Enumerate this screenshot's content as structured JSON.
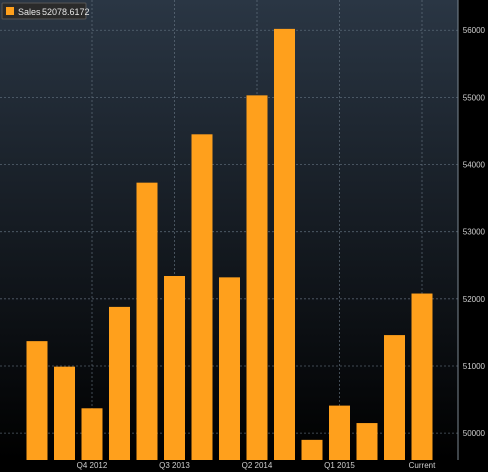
{
  "chart_data": {
    "type": "bar",
    "legend": {
      "label": "Sales",
      "value": "52078.6172",
      "placement": "top-left"
    },
    "series": [
      {
        "name": "Sales",
        "color": "#FFA01C",
        "values": [
          51370,
          50990,
          50370,
          51880,
          53730,
          52340,
          54450,
          52320,
          55030,
          56020,
          49900,
          50410,
          50150,
          51460,
          52079
        ]
      }
    ],
    "x_tick_labels": [
      {
        "index": 2,
        "label": "Q4 2012"
      },
      {
        "index": 5,
        "label": "Q3 2013"
      },
      {
        "index": 8,
        "label": "Q2 2014"
      },
      {
        "index": 11,
        "label": "Q1 2015"
      },
      {
        "index": 14,
        "label": "Current"
      }
    ],
    "ylim": [
      49600,
      56450
    ],
    "yticks": [
      50000,
      51000,
      52000,
      53000,
      54000,
      55000,
      56000
    ],
    "ytick_labels": [
      "50000",
      "51000",
      "52000",
      "53000",
      "54000",
      "55000",
      "56000"
    ],
    "y_axis_position": "right",
    "grid": true,
    "background": {
      "top": "#2a3644",
      "bottom": "#000000"
    }
  }
}
